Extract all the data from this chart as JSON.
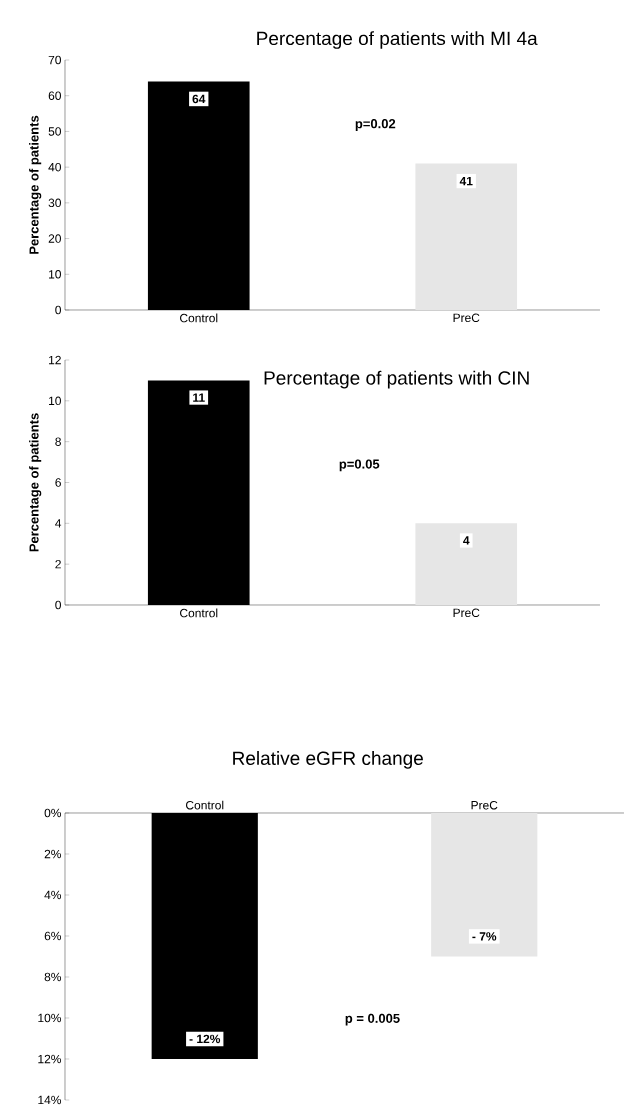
{
  "chart_data": [
    {
      "type": "bar",
      "title": "Percentage of patients with MI 4a",
      "ylabel": "Percentage of patients",
      "categories": [
        "Control",
        "PreC"
      ],
      "values": [
        64,
        41
      ],
      "colors": [
        "#000000",
        "#e6e6e6"
      ],
      "ylim": [
        0,
        70
      ],
      "yticks": [
        0,
        10,
        20,
        30,
        40,
        50,
        60,
        70
      ],
      "data_labels": true,
      "annotations": [
        "p=0.02"
      ]
    },
    {
      "type": "bar",
      "title": "Percentage of patients with CIN",
      "ylabel": "Percentage of patients",
      "categories": [
        "Control",
        "PreC"
      ],
      "values": [
        11,
        4
      ],
      "colors": [
        "#000000",
        "#e6e6e6"
      ],
      "ylim": [
        0,
        12
      ],
      "yticks": [
        0,
        2,
        4,
        6,
        8,
        10,
        12
      ],
      "data_labels": true,
      "annotations": [
        "p=0.05"
      ]
    },
    {
      "type": "bar",
      "title": "Relative eGFR change",
      "categories": [
        "Control",
        "PreC"
      ],
      "values": [
        -12,
        -7
      ],
      "value_labels": [
        "- 12%",
        "- 7%"
      ],
      "colors": [
        "#000000",
        "#e6e6e6"
      ],
      "ylim": [
        -14,
        0
      ],
      "yticks": [
        {
          "value": 0,
          "label": "0%"
        },
        {
          "value": -2,
          "label": "2%"
        },
        {
          "value": -4,
          "label": "4%"
        },
        {
          "value": -6,
          "label": "6%"
        },
        {
          "value": -8,
          "label": "8%"
        },
        {
          "value": -10,
          "label": "10%"
        },
        {
          "value": -12,
          "label": "12%"
        },
        {
          "value": -14,
          "label": "14%"
        }
      ],
      "annotations": [
        "p = 0.005"
      ]
    }
  ]
}
